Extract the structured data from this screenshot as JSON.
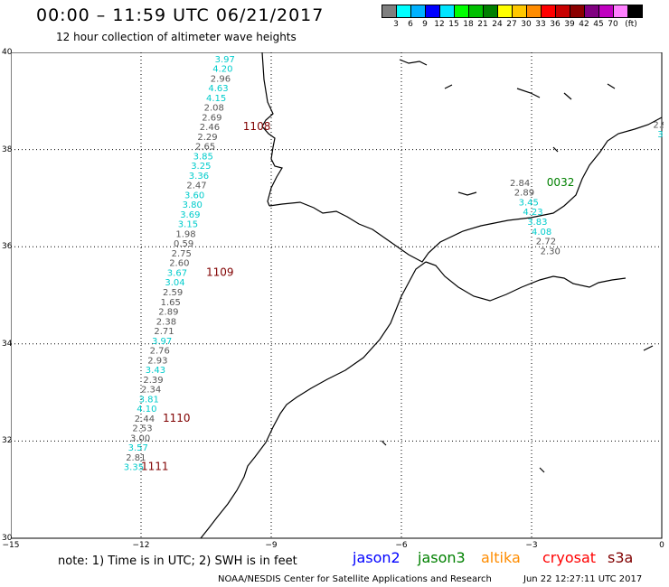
{
  "header": {
    "title": "00:00 – 11:59 UTC 06/21/2017",
    "subtitle": "12 hour collection of altimeter wave heights"
  },
  "legend": {
    "colors": [
      "#7f7f7f",
      "#00ffff",
      "#00b2ff",
      "#0000ff",
      "#00e5ff",
      "#00ff00",
      "#00c000",
      "#008000",
      "#ffff00",
      "#ffc800",
      "#ff8c00",
      "#ff0000",
      "#c80000",
      "#8b0000",
      "#800080",
      "#c000c0",
      "#ff80ff",
      "#000000"
    ],
    "labels": [
      "3",
      "6",
      "9",
      "12",
      "15",
      "18",
      "21",
      "24",
      "27",
      "30",
      "33",
      "36",
      "39",
      "42",
      "45",
      "70",
      "(ft)"
    ]
  },
  "axes": {
    "lon_ticks": [
      "−15",
      "−12",
      "−9",
      "−6",
      "−3",
      "0"
    ],
    "lat_ticks": [
      "40",
      "38",
      "36",
      "34",
      "32",
      "30"
    ]
  },
  "markers": [
    {
      "value": "3.97",
      "lon": -10.3,
      "lat": 39.8,
      "color": "#00cccc"
    },
    {
      "value": "4.20",
      "lon": -10.35,
      "lat": 39.6,
      "color": "#00cccc"
    },
    {
      "value": "2.96",
      "lon": -10.4,
      "lat": 39.4,
      "color": "#555555"
    },
    {
      "value": "4.63",
      "lon": -10.45,
      "lat": 39.2,
      "color": "#00cccc"
    },
    {
      "value": "4.15",
      "lon": -10.5,
      "lat": 39.0,
      "color": "#00cccc"
    },
    {
      "value": "2.08",
      "lon": -10.55,
      "lat": 38.8,
      "color": "#555555"
    },
    {
      "value": "2.69",
      "lon": -10.6,
      "lat": 38.6,
      "color": "#555555"
    },
    {
      "value": "2.46",
      "lon": -10.65,
      "lat": 38.4,
      "color": "#555555"
    },
    {
      "value": "2.29",
      "lon": -10.7,
      "lat": 38.2,
      "color": "#555555"
    },
    {
      "value": "2.65",
      "lon": -10.75,
      "lat": 38.0,
      "color": "#555555"
    },
    {
      "value": "3.85",
      "lon": -10.8,
      "lat": 37.8,
      "color": "#00cccc"
    },
    {
      "value": "3.25",
      "lon": -10.85,
      "lat": 37.6,
      "color": "#00cccc"
    },
    {
      "value": "3.36",
      "lon": -10.9,
      "lat": 37.4,
      "color": "#00cccc"
    },
    {
      "value": "2.47",
      "lon": -10.95,
      "lat": 37.2,
      "color": "#555555"
    },
    {
      "value": "3.60",
      "lon": -11.0,
      "lat": 37.0,
      "color": "#00cccc"
    },
    {
      "value": "3.80",
      "lon": -11.05,
      "lat": 36.8,
      "color": "#00cccc"
    },
    {
      "value": "3.69",
      "lon": -11.1,
      "lat": 36.6,
      "color": "#00cccc"
    },
    {
      "value": "3.15",
      "lon": -11.15,
      "lat": 36.4,
      "color": "#00cccc"
    },
    {
      "value": "1.98",
      "lon": -11.2,
      "lat": 36.2,
      "color": "#555555"
    },
    {
      "value": "0.59",
      "lon": -11.25,
      "lat": 36.0,
      "color": "#555555"
    },
    {
      "value": "2.75",
      "lon": -11.3,
      "lat": 35.8,
      "color": "#555555"
    },
    {
      "value": "2.60",
      "lon": -11.35,
      "lat": 35.6,
      "color": "#555555"
    },
    {
      "value": "3.67",
      "lon": -11.4,
      "lat": 35.4,
      "color": "#00cccc"
    },
    {
      "value": "3.04",
      "lon": -11.45,
      "lat": 35.2,
      "color": "#00cccc"
    },
    {
      "value": "2.59",
      "lon": -11.5,
      "lat": 35.0,
      "color": "#555555"
    },
    {
      "value": "1.65",
      "lon": -11.55,
      "lat": 34.8,
      "color": "#555555"
    },
    {
      "value": "2.89",
      "lon": -11.6,
      "lat": 34.6,
      "color": "#555555"
    },
    {
      "value": "2.38",
      "lon": -11.65,
      "lat": 34.4,
      "color": "#555555"
    },
    {
      "value": "2.71",
      "lon": -11.7,
      "lat": 34.2,
      "color": "#555555"
    },
    {
      "value": "3.97",
      "lon": -11.75,
      "lat": 34.0,
      "color": "#00cccc"
    },
    {
      "value": "2.76",
      "lon": -11.8,
      "lat": 33.8,
      "color": "#555555"
    },
    {
      "value": "2.93",
      "lon": -11.85,
      "lat": 33.6,
      "color": "#555555"
    },
    {
      "value": "3.43",
      "lon": -11.9,
      "lat": 33.4,
      "color": "#00cccc"
    },
    {
      "value": "2.39",
      "lon": -11.95,
      "lat": 33.2,
      "color": "#555555"
    },
    {
      "value": "2.34",
      "lon": -12.0,
      "lat": 33.0,
      "color": "#555555"
    },
    {
      "value": "3.81",
      "lon": -12.05,
      "lat": 32.8,
      "color": "#00cccc"
    },
    {
      "value": "4.10",
      "lon": -12.1,
      "lat": 32.6,
      "color": "#00cccc"
    },
    {
      "value": "2.44",
      "lon": -12.15,
      "lat": 32.4,
      "color": "#555555"
    },
    {
      "value": "2.53",
      "lon": -12.2,
      "lat": 32.2,
      "color": "#555555"
    },
    {
      "value": "3.00",
      "lon": -12.25,
      "lat": 32.0,
      "color": "#555555"
    },
    {
      "value": "3.57",
      "lon": -12.3,
      "lat": 31.8,
      "color": "#00cccc"
    },
    {
      "value": "2.81",
      "lon": -12.35,
      "lat": 31.6,
      "color": "#555555"
    },
    {
      "value": "3.35",
      "lon": -12.4,
      "lat": 31.4,
      "color": "#00cccc"
    },
    {
      "value": "2.84",
      "lon": -3.5,
      "lat": 37.25,
      "color": "#555555"
    },
    {
      "value": "2.89",
      "lon": -3.4,
      "lat": 37.05,
      "color": "#555555"
    },
    {
      "value": "3.45",
      "lon": -3.3,
      "lat": 36.85,
      "color": "#00cccc"
    },
    {
      "value": "4.23",
      "lon": -3.2,
      "lat": 36.65,
      "color": "#00cccc"
    },
    {
      "value": "3.83",
      "lon": -3.1,
      "lat": 36.45,
      "color": "#00cccc"
    },
    {
      "value": "4.08",
      "lon": -3.0,
      "lat": 36.25,
      "color": "#00cccc"
    },
    {
      "value": "2.72",
      "lon": -2.9,
      "lat": 36.05,
      "color": "#555555"
    },
    {
      "value": "2.30",
      "lon": -2.8,
      "lat": 35.85,
      "color": "#555555"
    },
    {
      "value": "2.9",
      "lon": -0.2,
      "lat": 38.45,
      "color": "#555555"
    },
    {
      "value": "3",
      "lon": -0.1,
      "lat": 38.25,
      "color": "#00cccc"
    }
  ],
  "time_labels": [
    {
      "value": "1108",
      "lon": -9.65,
      "lat": 38.4,
      "color": "#800000"
    },
    {
      "value": "1109",
      "lon": -10.5,
      "lat": 35.4,
      "color": "#800000"
    },
    {
      "value": "1110",
      "lon": -11.5,
      "lat": 32.4,
      "color": "#800000"
    },
    {
      "value": "1111",
      "lon": -12.0,
      "lat": 31.4,
      "color": "#800000"
    },
    {
      "value": "0032",
      "lon": -2.65,
      "lat": 37.25,
      "color": "#008000"
    }
  ],
  "footer": {
    "note": "note:  1) Time is in UTC;  2) SWH is in feet",
    "satellites": [
      {
        "name": "jason2",
        "color": "#0000ff"
      },
      {
        "name": "jason3",
        "color": "#008000"
      },
      {
        "name": "altika",
        "color": "#ff8c00"
      },
      {
        "name": "cryosat",
        "color": "#ff0000"
      },
      {
        "name": "s3a",
        "color": "#800000"
      }
    ],
    "credit": "NOAA/NESDIS Center for Satellite Applications and Research",
    "timestamp": "Jun 22 12:27:11 UTC 2017"
  }
}
